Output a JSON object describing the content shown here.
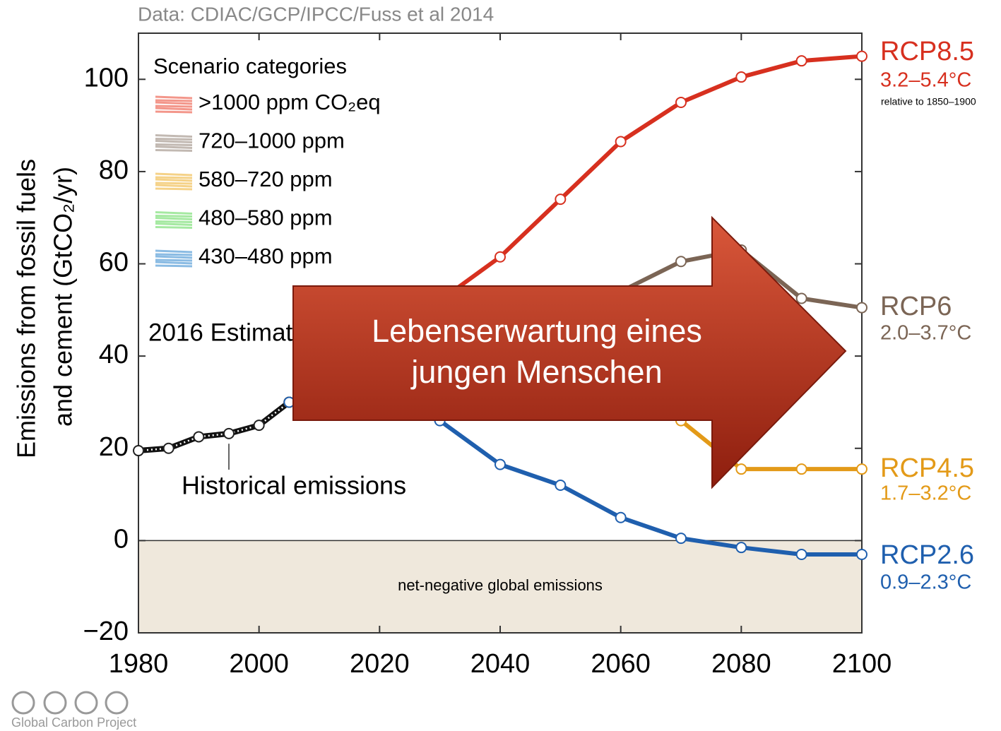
{
  "chart_data": {
    "type": "line",
    "title": "Data: CDIAC/GCP/IPCC/Fuss et al 2014",
    "y_label": [
      "Emissions from fossil fuels",
      "and cement (GtCO₂/yr)"
    ],
    "x": [
      1980,
      1985,
      1990,
      1995,
      2000,
      2005,
      2010,
      2020,
      2030,
      2040,
      2050,
      2060,
      2070,
      2080,
      2090,
      2100
    ],
    "xlim": [
      1980,
      2100
    ],
    "xticks": [
      1980,
      2000,
      2020,
      2040,
      2060,
      2080,
      2100
    ],
    "ylim": [
      -20,
      110
    ],
    "yticks": [
      {
        "value": -20,
        "label": "−20"
      },
      0,
      20,
      40,
      60,
      80,
      100
    ],
    "series": [
      {
        "name": "Historical emissions",
        "color": "#111111",
        "values": [
          19.5,
          20,
          22.5,
          23.2,
          25,
          30,
          33,
          null,
          null,
          null,
          null,
          null,
          null,
          null,
          null,
          null
        ]
      },
      {
        "name": "RCP8.5",
        "range": "3.2–5.4°C",
        "color": "#d7301f",
        "values": [
          null,
          null,
          null,
          null,
          null,
          30,
          35,
          44,
          52,
          61.5,
          74,
          86.5,
          95,
          100.5,
          104,
          105
        ]
      },
      {
        "name": "RCP6",
        "range": "2.0–3.7°C",
        "color": "#7b6555",
        "values": [
          null,
          null,
          null,
          null,
          null,
          30,
          32,
          38,
          44,
          48,
          52,
          54,
          60.5,
          63,
          52.5,
          50.5
        ]
      },
      {
        "name": "RCP4.5",
        "range": "1.7–3.2°C",
        "color": "#e39a18",
        "values": [
          null,
          null,
          null,
          null,
          null,
          30,
          33,
          37,
          40,
          40,
          38,
          33,
          26,
          15.5,
          15.5,
          15.5
        ]
      },
      {
        "name": "RCP2.6",
        "range": "0.9–2.3°C",
        "color": "#1f5fae",
        "values": [
          null,
          null,
          null,
          null,
          null,
          30,
          32,
          30,
          26,
          16.5,
          12,
          5,
          0.5,
          -1.5,
          -3,
          -3
        ]
      }
    ],
    "legend_title": "Scenario categories",
    "legend": [
      {
        "label": ">1000 ppm CO₂eq",
        "color": "#ef6a5a"
      },
      {
        "label": "720–1000 ppm",
        "color": "#a99c92"
      },
      {
        "label": "580–720 ppm",
        "color": "#f2bf57"
      },
      {
        "label": "480–580 ppm",
        "color": "#7fe07a"
      },
      {
        "label": "430–480 ppm",
        "color": "#5a9fd8"
      }
    ],
    "annotations": {
      "reference": "relative to 1850–1900",
      "estimate": "2016 Estimate",
      "negative": "net-negative global emissions",
      "arrow": [
        "Lebenserwartung eines",
        "jungen Menschen"
      ],
      "credit": "Global Carbon Project"
    }
  }
}
